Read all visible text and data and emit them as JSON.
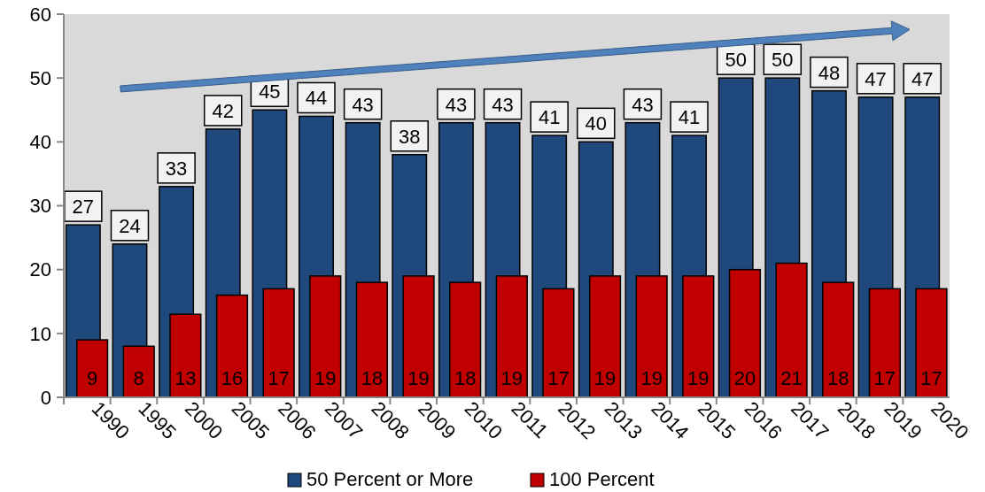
{
  "chart_data": {
    "type": "bar",
    "categories": [
      "1990",
      "1995",
      "2000",
      "2005",
      "2006",
      "2007",
      "2008",
      "2009",
      "2010",
      "2011",
      "2012",
      "2013",
      "2014",
      "2015",
      "2016",
      "2017",
      "2018",
      "2019",
      "2020"
    ],
    "series": [
      {
        "name": "50 Percent or More",
        "color": "#1f497d",
        "values": [
          27,
          24,
          33,
          42,
          45,
          44,
          43,
          38,
          43,
          43,
          41,
          40,
          43,
          41,
          50,
          50,
          48,
          47,
          47
        ]
      },
      {
        "name": "100 Percent",
        "color": "#c00000",
        "values": [
          9,
          8,
          13,
          16,
          17,
          19,
          18,
          19,
          18,
          19,
          17,
          19,
          19,
          19,
          20,
          21,
          18,
          17,
          17
        ]
      }
    ],
    "ylim": [
      0,
      60
    ],
    "yticks": [
      0,
      10,
      20,
      30,
      40,
      50,
      60
    ],
    "data_labels": true,
    "legend": "bottom",
    "grid": false
  }
}
